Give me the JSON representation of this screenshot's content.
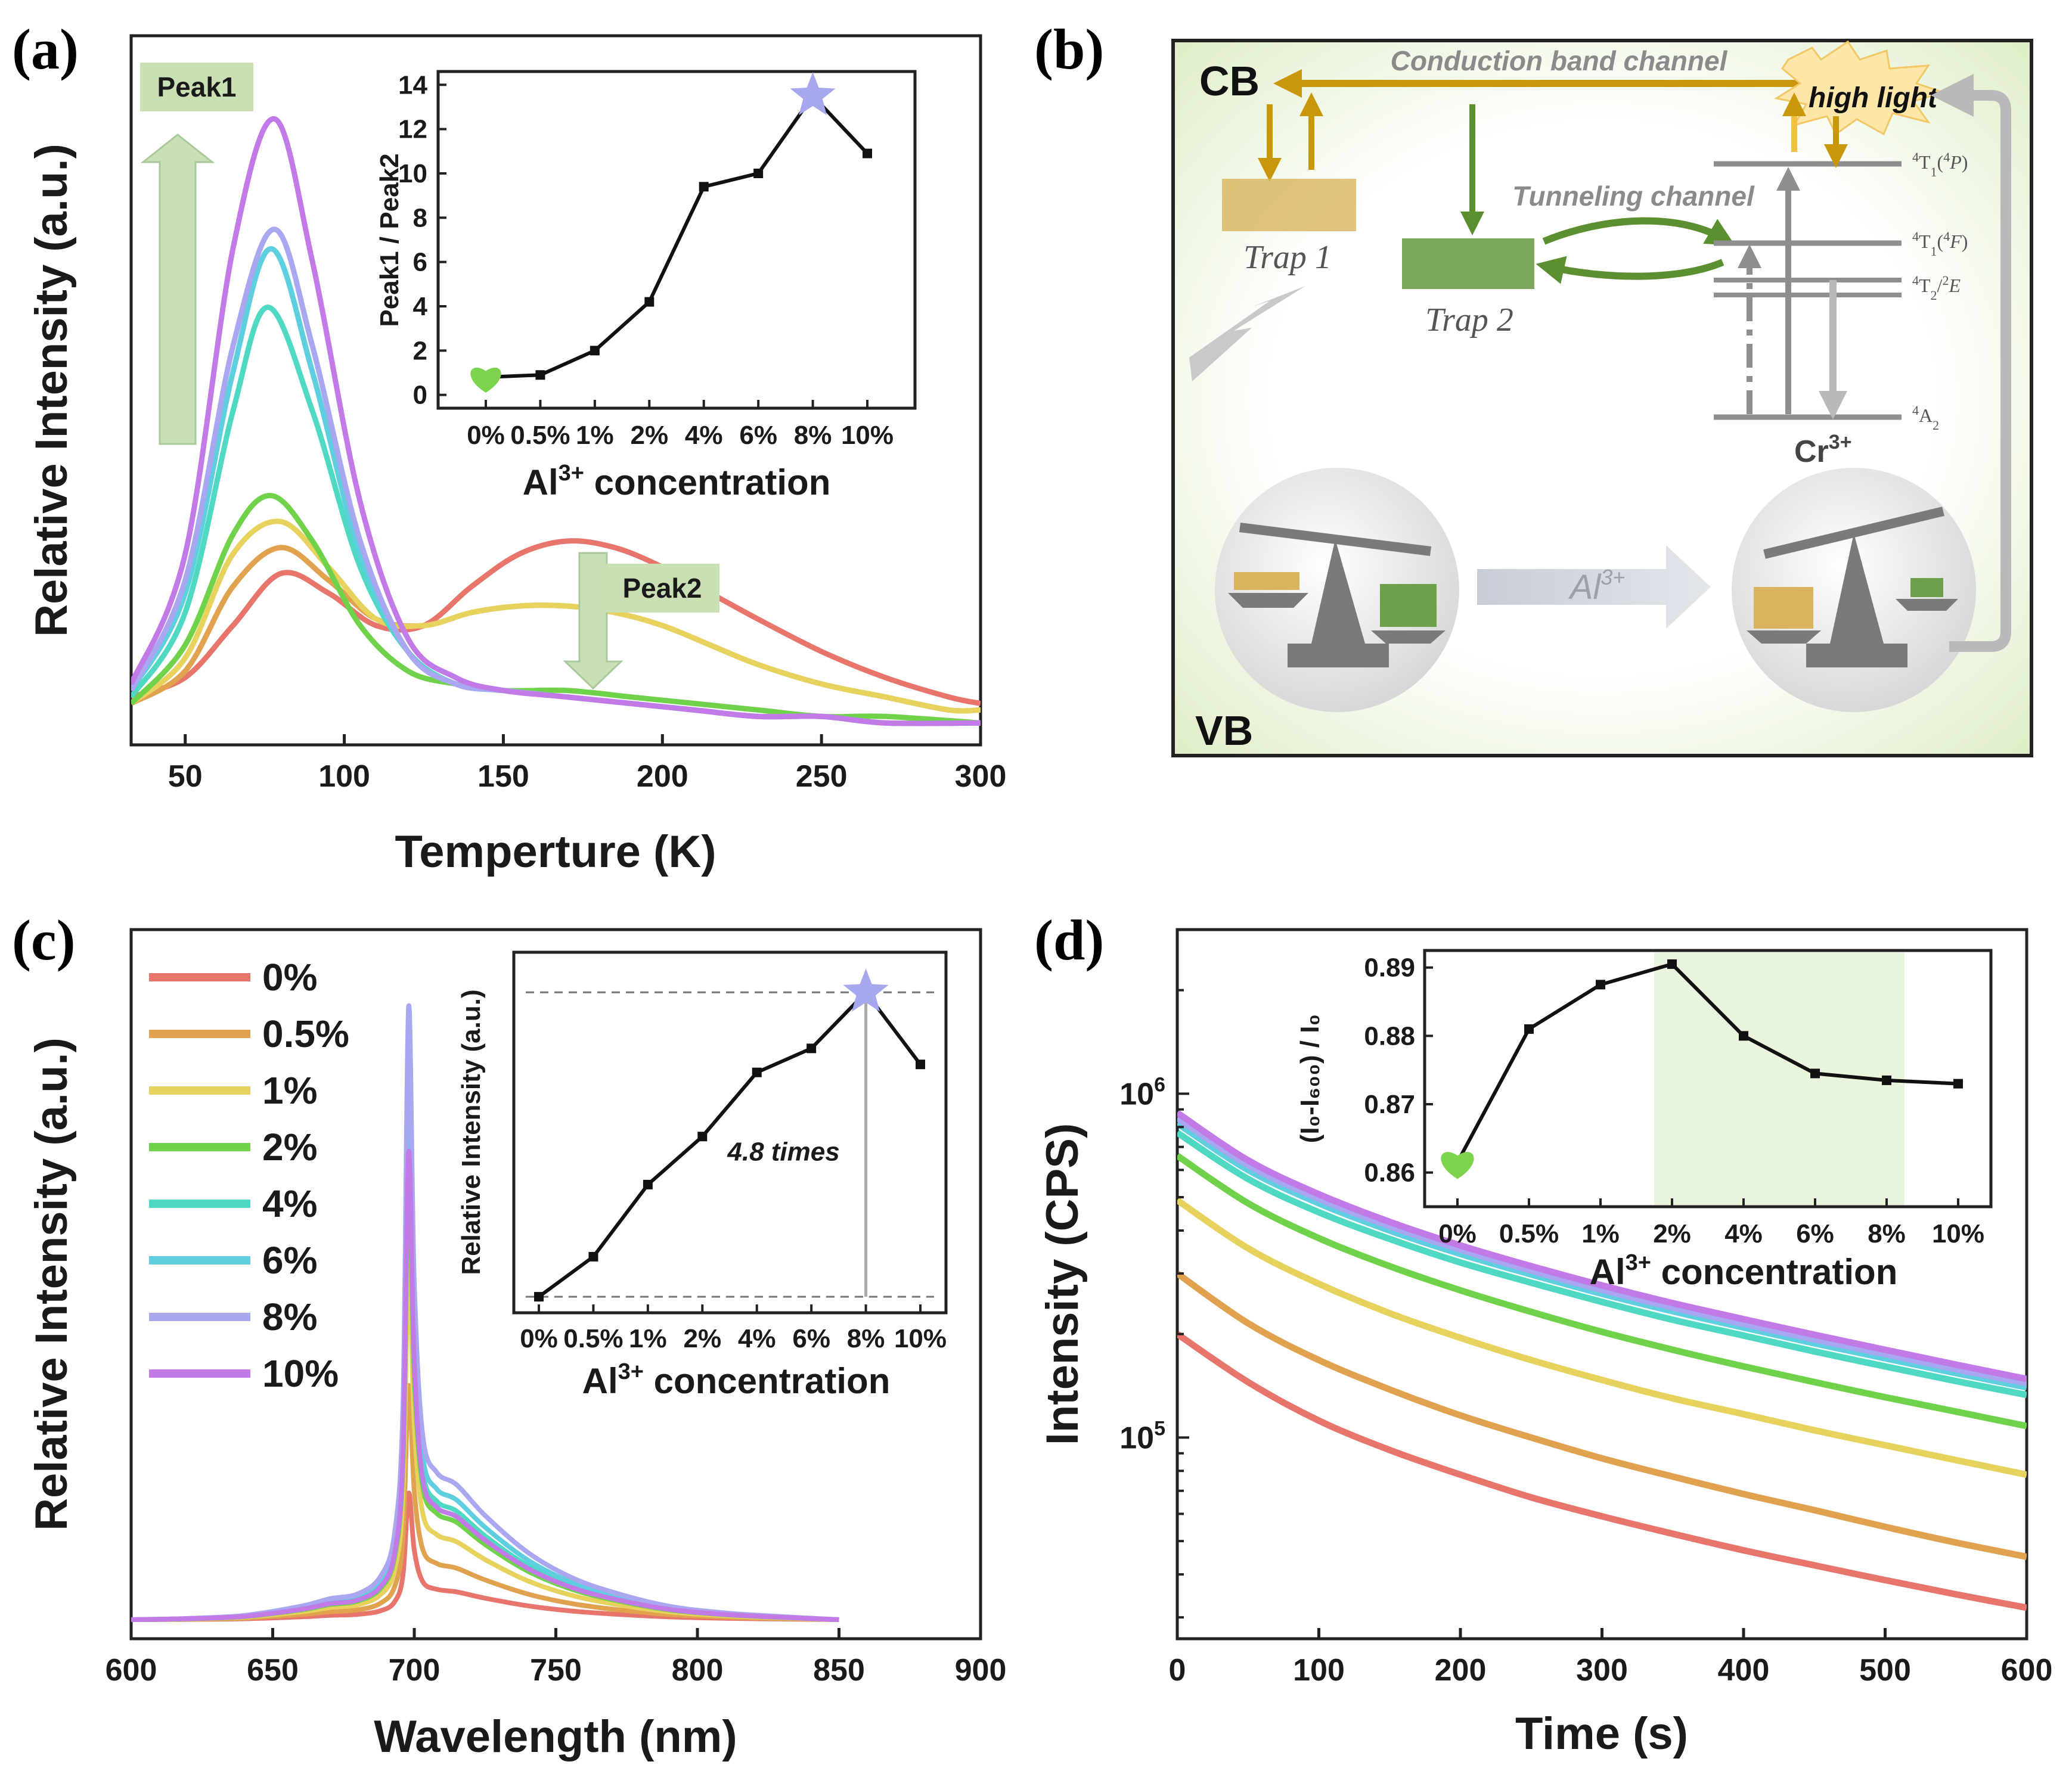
{
  "panels": {
    "a": {
      "label": "(a)"
    },
    "b": {
      "label": "(b)"
    },
    "c": {
      "label": "(c)"
    },
    "d": {
      "label": "(d)"
    }
  },
  "colors": {
    "0%": "#e8756c",
    "0.5%": "#e0a24f",
    "1%": "#e6d25c",
    "2%": "#6fd24a",
    "4%": "#4fd8c2",
    "6%": "#5fcfe0",
    "8%": "#a9a7f0",
    "10%": "#c27ae6",
    "trap1": "#d9b45c",
    "trap2": "#6e9f4a",
    "gold_arrow": "#c8980a",
    "green_arrow": "#5b8f2f",
    "gray": "#8e8e8e",
    "marker_star": "#a6a8ee",
    "marker_heart": "#7dd34b",
    "highlight": "#e9f4dc"
  },
  "chart_data": [
    {
      "panel": "a",
      "type": "line",
      "title": "",
      "xlabel": "Temperture (K)",
      "ylabel": "Relative Intensity (a.u.)",
      "xlim": [
        33,
        300
      ],
      "xticks": [
        50,
        100,
        150,
        200,
        250,
        300
      ],
      "yticks": [],
      "annotations": {
        "peak1": "Peak1",
        "peak2": "Peak2"
      },
      "series": [
        {
          "name": "0%",
          "x": [
            33,
            50,
            65,
            80,
            95,
            110,
            125,
            140,
            155,
            170,
            185,
            200,
            215,
            230,
            250,
            270,
            290,
            300
          ],
          "y": [
            6,
            9,
            17,
            25,
            22,
            17,
            17,
            23,
            28,
            30,
            29,
            26,
            22,
            18,
            13,
            9,
            6,
            5
          ]
        },
        {
          "name": "0.5%",
          "x": [
            33,
            50,
            65,
            80,
            95,
            110,
            125,
            140,
            155,
            170,
            185,
            200,
            215,
            230,
            250,
            270,
            290,
            300
          ],
          "y": [
            5,
            10,
            23,
            29,
            24,
            18,
            17,
            19,
            20,
            20,
            19,
            17,
            14,
            11,
            8,
            6,
            4,
            4
          ]
        },
        {
          "name": "1%",
          "x": [
            33,
            50,
            65,
            80,
            95,
            110,
            125,
            140,
            155,
            170,
            185,
            200,
            215,
            230,
            250,
            270,
            290,
            300
          ],
          "y": [
            5,
            12,
            28,
            33,
            26,
            18,
            17,
            19,
            20,
            20,
            19,
            17,
            14,
            11,
            8,
            6,
            4,
            4
          ]
        },
        {
          "name": "2%",
          "x": [
            33,
            50,
            65,
            77,
            90,
            105,
            120,
            135,
            150,
            170,
            190,
            210,
            230,
            250,
            270,
            300
          ],
          "y": [
            5,
            14,
            31,
            37,
            30,
            17,
            10,
            8,
            7,
            7,
            6,
            5,
            4,
            3,
            3,
            2
          ]
        },
        {
          "name": "4%",
          "x": [
            33,
            50,
            65,
            76,
            90,
            105,
            120,
            135,
            150,
            170,
            190,
            210,
            230,
            250,
            270,
            300
          ],
          "y": [
            6,
            19,
            50,
            66,
            50,
            26,
            13,
            8,
            7,
            6,
            5,
            4,
            3,
            3,
            2,
            2
          ]
        },
        {
          "name": "6%",
          "x": [
            33,
            50,
            65,
            77,
            90,
            105,
            120,
            135,
            150,
            170,
            190,
            210,
            230,
            250,
            270,
            300
          ],
          "y": [
            7,
            22,
            56,
            75,
            56,
            28,
            13,
            8,
            7,
            6,
            5,
            4,
            3,
            3,
            2,
            2
          ]
        },
        {
          "name": "8%",
          "x": [
            33,
            50,
            65,
            78,
            90,
            105,
            120,
            135,
            150,
            170,
            190,
            210,
            230,
            250,
            270,
            300
          ],
          "y": [
            7,
            24,
            60,
            78,
            60,
            30,
            13,
            8,
            7,
            6,
            5,
            4,
            3,
            3,
            2,
            2
          ]
        },
        {
          "name": "10%",
          "x": [
            33,
            50,
            65,
            78,
            90,
            105,
            120,
            135,
            150,
            170,
            190,
            210,
            230,
            250,
            270,
            300
          ],
          "y": [
            8,
            28,
            75,
            95,
            73,
            36,
            15,
            9,
            7,
            6,
            5,
            4,
            3,
            3,
            2,
            2
          ]
        }
      ]
    },
    {
      "panel": "a-inset",
      "type": "line",
      "xlabel": "Al³⁺ concentration",
      "ylabel": "Peak1 / Peak2",
      "categories": [
        "0%",
        "0.5%",
        "1%",
        "2%",
        "4%",
        "6%",
        "8%",
        "10%"
      ],
      "values": [
        0.8,
        0.9,
        2.0,
        4.2,
        9.4,
        10.0,
        13.5,
        10.9
      ],
      "ylim": [
        -0.6,
        14.6
      ],
      "yticks": [
        0,
        2,
        4,
        6,
        8,
        10,
        12,
        14
      ]
    },
    {
      "panel": "c",
      "type": "line",
      "xlabel": "Wavelength (nm)",
      "ylabel": "Relative Intensity (a.u.)",
      "xlim": [
        600,
        900
      ],
      "xticks": [
        600,
        650,
        700,
        750,
        800,
        850,
        900
      ],
      "yticks": [],
      "peak_wavelength": 698,
      "series": [
        {
          "name": "0%",
          "peak": 20
        },
        {
          "name": "0.5%",
          "peak": 37
        },
        {
          "name": "1%",
          "peak": 56
        },
        {
          "name": "2%",
          "peak": 70
        },
        {
          "name": "4%",
          "peak": 78
        },
        {
          "name": "6%",
          "peak": 86
        },
        {
          "name": "8%",
          "peak": 97
        },
        {
          "name": "10%",
          "peak": 74
        }
      ]
    },
    {
      "panel": "c-inset",
      "type": "line",
      "xlabel": "Al³⁺ concentration",
      "ylabel": "Relative Intensity (a.u.)",
      "categories": [
        "0%",
        "0.5%",
        "1%",
        "2%",
        "4%",
        "6%",
        "8%",
        "10%"
      ],
      "values": [
        1.0,
        1.5,
        2.4,
        3.0,
        3.8,
        4.1,
        4.8,
        3.9
      ],
      "ylim": [
        0.8,
        5.3
      ],
      "annotation": "4.8 times"
    },
    {
      "panel": "d",
      "type": "line",
      "xlabel": "Time (s)",
      "ylabel": "Intensity (CPS)",
      "xlim": [
        0,
        600
      ],
      "xticks": [
        0,
        100,
        200,
        300,
        400,
        500,
        600
      ],
      "yscale": "log",
      "ylim": [
        26000,
        3000000
      ],
      "yticks": [
        {
          "value": 100000,
          "base": "10",
          "exp": "5"
        },
        {
          "value": 1000000,
          "base": "10",
          "exp": "6"
        }
      ],
      "x": [
        0,
        50,
        100,
        150,
        200,
        250,
        300,
        350,
        400,
        450,
        500,
        550,
        600
      ],
      "series": [
        {
          "name": "0%",
          "values": [
            200000,
            145000,
            112000,
            92000,
            78000,
            67000,
            59000,
            52500,
            47000,
            42500,
            38500,
            35000,
            32000
          ]
        },
        {
          "name": "0.5%",
          "values": [
            300000,
            215000,
            168000,
            138000,
            116000,
            100000,
            87000,
            77000,
            68500,
            61500,
            55000,
            49500,
            45000
          ]
        },
        {
          "name": "1%",
          "values": [
            490000,
            355000,
            280000,
            230000,
            195000,
            168000,
            147000,
            130000,
            117000,
            105000,
            95000,
            86000,
            78000
          ]
        },
        {
          "name": "2%",
          "values": [
            660000,
            480000,
            380000,
            315000,
            268000,
            232000,
            203000,
            180000,
            161000,
            145000,
            131000,
            119000,
            108000
          ]
        },
        {
          "name": "4%",
          "values": [
            770000,
            565000,
            452000,
            378000,
            323000,
            282000,
            248000,
            220000,
            198000,
            178000,
            161000,
            146000,
            133000
          ]
        },
        {
          "name": "6%",
          "values": [
            820000,
            600000,
            480000,
            400000,
            342000,
            298000,
            262000,
            233000,
            209000,
            188000,
            170000,
            154000,
            140000
          ]
        },
        {
          "name": "8%",
          "values": [
            850000,
            620000,
            495000,
            412000,
            352000,
            306000,
            269000,
            239000,
            214000,
            193000,
            175000,
            158000,
            144000
          ]
        },
        {
          "name": "10%",
          "values": [
            880000,
            640000,
            510000,
            424000,
            362000,
            315000,
            277000,
            246000,
            221000,
            199000,
            180000,
            163000,
            148000
          ]
        }
      ]
    },
    {
      "panel": "d-inset",
      "type": "line",
      "xlabel": "Al³⁺ concentration",
      "ylabel": "(I₀-I₆₀₀) / I₀",
      "categories": [
        "0%",
        "0.5%",
        "1%",
        "2%",
        "4%",
        "6%",
        "8%",
        "10%"
      ],
      "values": [
        0.8615,
        0.881,
        0.8875,
        0.8905,
        0.88,
        0.8745,
        0.8735,
        0.873
      ],
      "ylim": [
        0.855,
        0.8925
      ],
      "yticks": [
        0.86,
        0.87,
        0.88,
        0.89
      ],
      "highlight_range": [
        "2%",
        "8%"
      ]
    }
  ],
  "legend_c": {
    "items": [
      "0%",
      "0.5%",
      "1%",
      "2%",
      "4%",
      "6%",
      "8%",
      "10%"
    ]
  },
  "diagram_b": {
    "cb": "CB",
    "vb": "VB",
    "conduction_channel": "Conduction band channel",
    "tunneling_channel": "Tunneling channel",
    "high_light": "high light",
    "trap1": "Trap 1",
    "trap2": "Trap 2",
    "cr_label": "Cr",
    "cr_sup": "3+",
    "al_label": "Al",
    "al_sup": "3+",
    "levels": {
      "t1p": {
        "sup1": "4",
        "main": "T",
        "sub": "1",
        "paren": "(",
        "sup2": "4",
        "state": "P",
        "close": ")"
      },
      "t1f": {
        "sup1": "4",
        "main": "T",
        "sub": "1",
        "paren": "(",
        "sup2": "4",
        "state": "F",
        "close": ")"
      },
      "t2e": {
        "sup1": "4",
        "main": "T",
        "sub": "2",
        "slash": "/",
        "sup2": "2",
        "state": "E"
      },
      "a2": {
        "sup1": "4",
        "main": "A",
        "sub": "2"
      }
    }
  }
}
